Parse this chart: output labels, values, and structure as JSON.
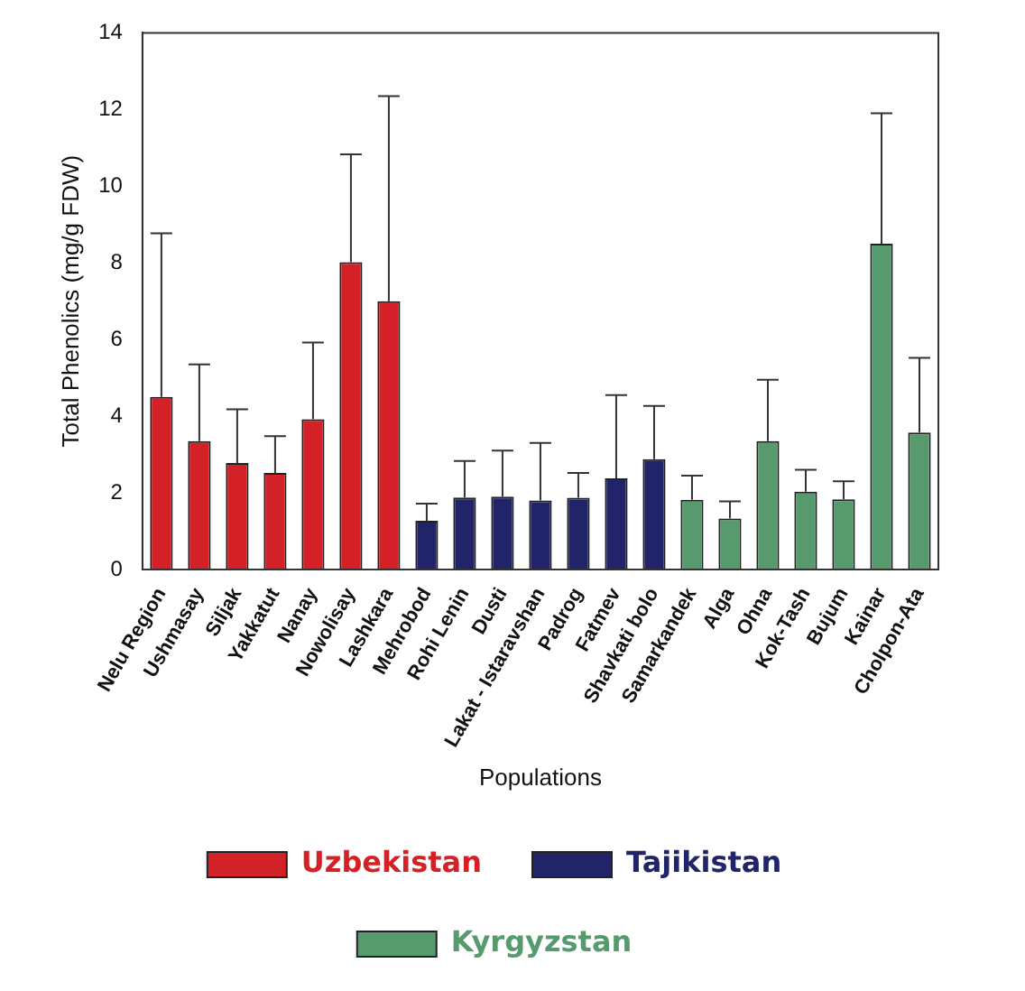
{
  "chart_data": {
    "type": "bar",
    "xlabel": "Populations",
    "ylabel": "Total Phenolics (mg/g FDW)",
    "categories": [
      "Nelu Region",
      "Ushmasay",
      "Siljak",
      "Yakkatut",
      "Nanay",
      "Nowolisay",
      "Lashkara",
      "Mehrobod",
      "Rohi Lenin",
      "Dusti",
      "Lakat - Istaravshan",
      "Padrog",
      "Fatmev",
      "Shavkati bolo",
      "Samarkandek",
      "Alga",
      "Ohna",
      "Kok-Tash",
      "Bujum",
      "Kainar",
      "Cholpon-Ata"
    ],
    "series": [
      {
        "name": "Uzbekistan",
        "color": "#d42027",
        "values": [
          4.5,
          3.35,
          2.78,
          2.52,
          3.92,
          8.02,
          7.0,
          null,
          null,
          null,
          null,
          null,
          null,
          null,
          null,
          null,
          null,
          null,
          null,
          null,
          null
        ],
        "errors": [
          [
            4.5,
            8.77
          ],
          [
            3.35,
            5.35
          ],
          [
            2.78,
            4.18
          ],
          [
            2.52,
            3.48
          ],
          [
            3.92,
            5.92
          ],
          [
            8.02,
            10.83
          ],
          [
            7.0,
            12.35
          ],
          null,
          null,
          null,
          null,
          null,
          null,
          null,
          null,
          null,
          null,
          null,
          null,
          null,
          null
        ]
      },
      {
        "name": "Tajikistan",
        "color": "#22246a",
        "values": [
          null,
          null,
          null,
          null,
          null,
          null,
          null,
          1.27,
          1.88,
          1.9,
          1.8,
          1.87,
          2.38,
          2.88,
          null,
          null,
          null,
          null,
          null,
          null,
          null
        ],
        "errors": [
          null,
          null,
          null,
          null,
          null,
          null,
          null,
          [
            1.27,
            1.72
          ],
          [
            1.88,
            2.83
          ],
          [
            1.9,
            3.1
          ],
          [
            1.8,
            3.3
          ],
          [
            1.87,
            2.52
          ],
          [
            2.38,
            4.55
          ],
          [
            2.88,
            4.27
          ],
          null,
          null,
          null,
          null,
          null,
          null,
          null
        ]
      },
      {
        "name": "Kyrgyzstan",
        "color": "#579a6e",
        "values": [
          null,
          null,
          null,
          null,
          null,
          null,
          null,
          null,
          null,
          null,
          null,
          null,
          null,
          null,
          1.82,
          1.33,
          3.35,
          2.03,
          1.83,
          8.5,
          3.57
        ],
        "errors": [
          null,
          null,
          null,
          null,
          null,
          null,
          null,
          null,
          null,
          null,
          null,
          null,
          null,
          null,
          [
            1.82,
            2.45
          ],
          [
            1.33,
            1.78
          ],
          [
            3.35,
            4.95
          ],
          [
            2.03,
            2.6
          ],
          [
            1.83,
            2.3
          ],
          [
            8.5,
            11.9
          ],
          [
            3.57,
            5.52
          ]
        ]
      }
    ],
    "ylim": [
      0,
      14
    ],
    "yticks": [
      0,
      2,
      4,
      6,
      8,
      10,
      12,
      14
    ],
    "grid": false,
    "legend": "bottom"
  }
}
